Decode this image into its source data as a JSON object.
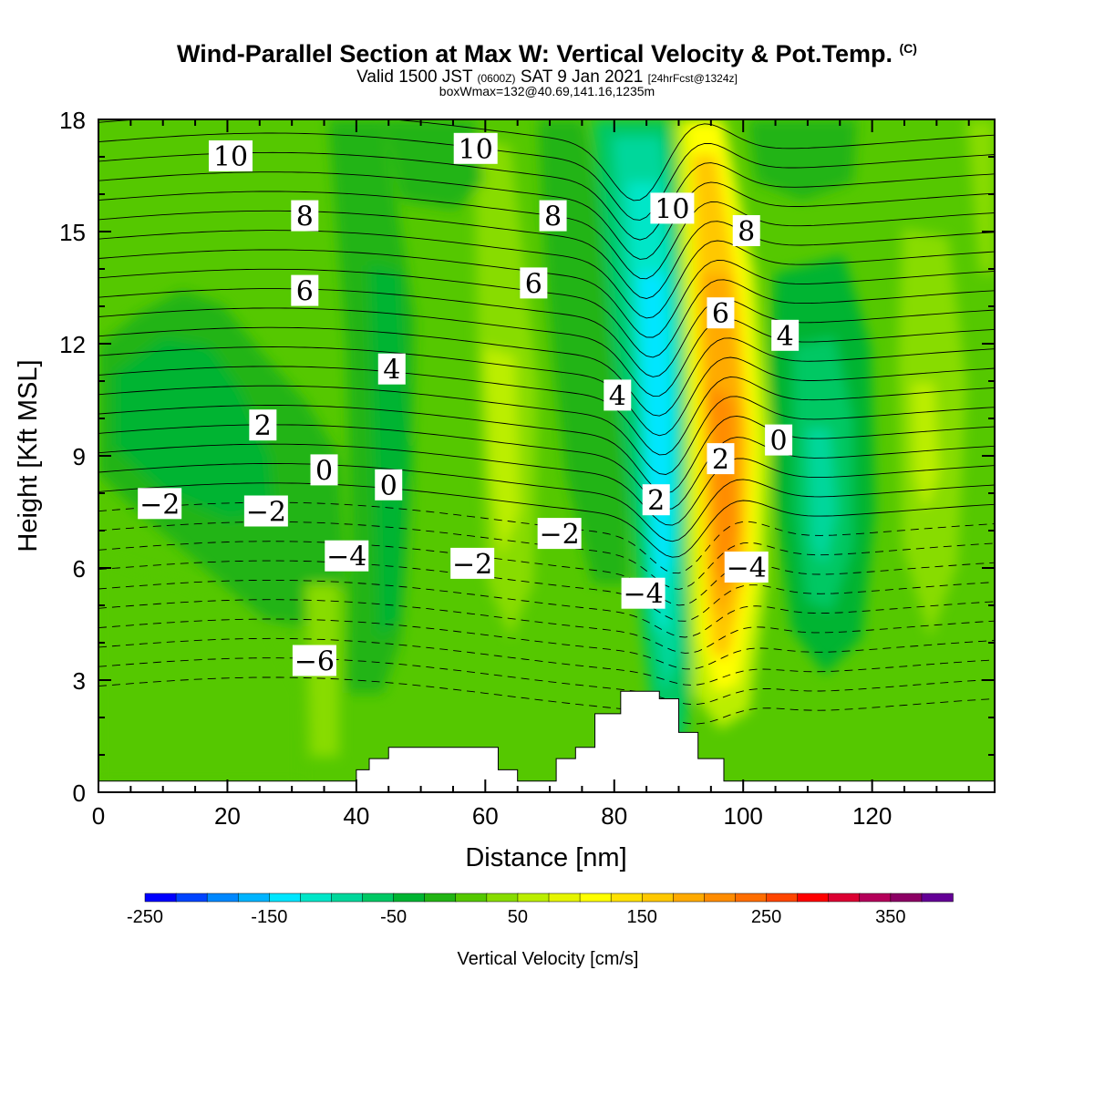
{
  "header": {
    "title": "Wind-Parallel Section at Max W: Vertical Velocity & Pot.Temp.",
    "copyright": "(C)",
    "valid_main": "Valid 1500 JST",
    "valid_utc": "(0600Z)",
    "valid_date": "SAT 9 Jan 2021",
    "forecast_info": "[24hrFcst@1324z]",
    "box_info": "boxWmax=132@40.69,141.16,1235m"
  },
  "chart_data": {
    "type": "heatmap",
    "title": "Wind-Parallel Section at Max W: Vertical Velocity & Pot.Temp.",
    "xlabel": "Distance [nm]",
    "ylabel": "Height [Kft MSL]",
    "xlim": [
      0,
      139
    ],
    "ylim": [
      0,
      18
    ],
    "x_ticks": [
      "0",
      "20",
      "40",
      "60",
      "80",
      "100",
      "120"
    ],
    "y_ticks": [
      "0",
      "3",
      "6",
      "9",
      "12",
      "15",
      "18"
    ],
    "colorbar": {
      "label": "Vertical Velocity [cm/s]",
      "min": -250,
      "max": 400,
      "step": 25,
      "tick_labels": [
        "-250",
        "-150",
        "-50",
        "50",
        "150",
        "250",
        "350"
      ],
      "colors": [
        "#0000ff",
        "#0044ff",
        "#0088ff",
        "#00b4ff",
        "#00e6ff",
        "#00e6c8",
        "#00d79b",
        "#00c864",
        "#00b432",
        "#22b414",
        "#55c800",
        "#88dc00",
        "#bbee00",
        "#e6f500",
        "#ffff00",
        "#ffe100",
        "#ffc800",
        "#ffaa00",
        "#ff8c00",
        "#ff6e00",
        "#ff4600",
        "#ff0000",
        "#dc0032",
        "#b4005a",
        "#8c0064",
        "#640096"
      ]
    },
    "vertical_velocity_features": [
      {
        "x": 88,
        "y": 9,
        "value": -125
      },
      {
        "x": 97,
        "y": 9,
        "value": 200
      },
      {
        "x": 110,
        "y": 8,
        "value": -75
      },
      {
        "x": 15,
        "y": 10,
        "value": -50
      },
      {
        "x": 62,
        "y": 10,
        "value": 50
      }
    ],
    "terrain_kft": {
      "x": [
        0,
        39,
        40,
        42,
        45,
        61,
        62,
        65,
        71,
        74,
        77,
        80,
        81,
        84,
        87,
        90,
        93,
        97,
        100,
        139
      ],
      "top": [
        0.3,
        0.3,
        0.6,
        0.9,
        1.2,
        1.2,
        0.6,
        0.3,
        0.9,
        1.2,
        2.1,
        2.1,
        2.7,
        2.7,
        2.5,
        1.6,
        0.9,
        0.3,
        0.3,
        0.3
      ]
    },
    "potential_temperature_labels": [
      {
        "text": "10",
        "x": 20.5,
        "y": 17.0
      },
      {
        "text": "10",
        "x": 58.5,
        "y": 17.2
      },
      {
        "text": "10",
        "x": 89.0,
        "y": 15.6
      },
      {
        "text": "8",
        "x": 32.0,
        "y": 15.4
      },
      {
        "text": "8",
        "x": 70.5,
        "y": 15.4
      },
      {
        "text": "8",
        "x": 100.5,
        "y": 15.0
      },
      {
        "text": "6",
        "x": 32.0,
        "y": 13.4
      },
      {
        "text": "6",
        "x": 67.5,
        "y": 13.6
      },
      {
        "text": "6",
        "x": 96.5,
        "y": 12.8
      },
      {
        "text": "4",
        "x": 45.5,
        "y": 11.3
      },
      {
        "text": "4",
        "x": 80.5,
        "y": 10.6
      },
      {
        "text": "4",
        "x": 106.5,
        "y": 12.2
      },
      {
        "text": "2",
        "x": 25.5,
        "y": 9.8
      },
      {
        "text": "2",
        "x": 96.5,
        "y": 8.9
      },
      {
        "text": "2",
        "x": 86.5,
        "y": 7.8
      },
      {
        "text": "0",
        "x": 35.0,
        "y": 8.6
      },
      {
        "text": "0",
        "x": 45.0,
        "y": 8.2
      },
      {
        "text": "0",
        "x": 105.5,
        "y": 9.4
      },
      {
        "text": "−2",
        "x": 9.5,
        "y": 7.7
      },
      {
        "text": "−2",
        "x": 26.0,
        "y": 7.5
      },
      {
        "text": "−2",
        "x": 58.0,
        "y": 6.1
      },
      {
        "text": "−2",
        "x": 71.5,
        "y": 6.9
      },
      {
        "text": "−4",
        "x": 38.5,
        "y": 6.3
      },
      {
        "text": "−4",
        "x": 84.5,
        "y": 5.3
      },
      {
        "text": "−4",
        "x": 100.5,
        "y": 6.0
      },
      {
        "text": "−6",
        "x": 33.5,
        "y": 3.5
      }
    ]
  }
}
